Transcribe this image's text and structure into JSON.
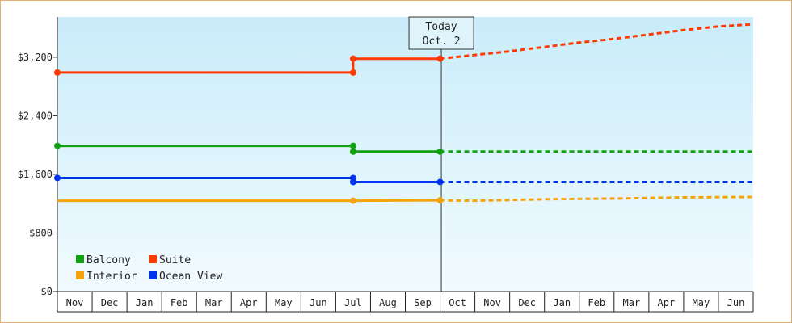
{
  "chart_data": {
    "type": "line",
    "y_ticks": [
      {
        "value": 0,
        "label": "$0"
      },
      {
        "value": 800,
        "label": "$800"
      },
      {
        "value": 1600,
        "label": "$1,600"
      },
      {
        "value": 2400,
        "label": "$2,400"
      },
      {
        "value": 3200,
        "label": "$3,200"
      }
    ],
    "ylim": [
      0,
      3750
    ],
    "months": [
      "Nov",
      "Dec",
      "Jan",
      "Feb",
      "Mar",
      "Apr",
      "May",
      "Jun",
      "Jul",
      "Aug",
      "Sep",
      "Oct",
      "Nov",
      "Dec",
      "Jan",
      "Feb",
      "Mar",
      "Apr",
      "May",
      "Jun"
    ],
    "today": {
      "line1": "Today",
      "line2": "Oct. 2",
      "month_index": 11
    },
    "series": [
      {
        "name": "Suite",
        "color": "#ff3a00",
        "history": [
          [
            0,
            2990
          ],
          [
            8.5,
            2990
          ],
          [
            8.5,
            3180
          ],
          [
            11,
            3180
          ]
        ],
        "markers": [
          [
            0,
            2990
          ],
          [
            8.5,
            2990
          ],
          [
            8.5,
            3180
          ],
          [
            11,
            3180
          ]
        ],
        "forecast": [
          [
            11,
            3180
          ],
          [
            12,
            3230
          ],
          [
            13,
            3280
          ],
          [
            14,
            3340
          ],
          [
            15,
            3400
          ],
          [
            16,
            3450
          ],
          [
            17,
            3510
          ],
          [
            18,
            3570
          ],
          [
            19,
            3620
          ],
          [
            20,
            3650
          ]
        ]
      },
      {
        "name": "Balcony",
        "color": "#11a011",
        "history": [
          [
            0,
            1990
          ],
          [
            8.5,
            1990
          ],
          [
            8.5,
            1910
          ],
          [
            11,
            1910
          ]
        ],
        "markers": [
          [
            0,
            1990
          ],
          [
            8.5,
            1990
          ],
          [
            8.5,
            1910
          ],
          [
            11,
            1910
          ]
        ],
        "forecast": [
          [
            11,
            1910
          ],
          [
            20,
            1910
          ]
        ]
      },
      {
        "name": "Ocean View",
        "color": "#0033ee",
        "history": [
          [
            0,
            1550
          ],
          [
            8.5,
            1550
          ],
          [
            8.5,
            1495
          ],
          [
            11,
            1495
          ]
        ],
        "markers": [
          [
            0,
            1550
          ],
          [
            8.5,
            1550
          ],
          [
            8.5,
            1495
          ],
          [
            11,
            1495
          ]
        ],
        "forecast": [
          [
            11,
            1495
          ],
          [
            20,
            1495
          ]
        ]
      },
      {
        "name": "Interior",
        "color": "#f5a30a",
        "history": [
          [
            0,
            1240
          ],
          [
            8.5,
            1240
          ],
          [
            11,
            1245
          ]
        ],
        "markers": [
          [
            8.5,
            1240
          ],
          [
            11,
            1245
          ]
        ],
        "forecast": [
          [
            11,
            1245
          ],
          [
            12,
            1240
          ],
          [
            14,
            1260
          ],
          [
            16,
            1270
          ],
          [
            18,
            1285
          ],
          [
            20,
            1290
          ]
        ]
      }
    ],
    "legend": {
      "placement": "bottom-left",
      "rows": [
        [
          "Balcony",
          "Suite"
        ],
        [
          "Interior",
          "Ocean View"
        ]
      ]
    },
    "grid": false
  }
}
